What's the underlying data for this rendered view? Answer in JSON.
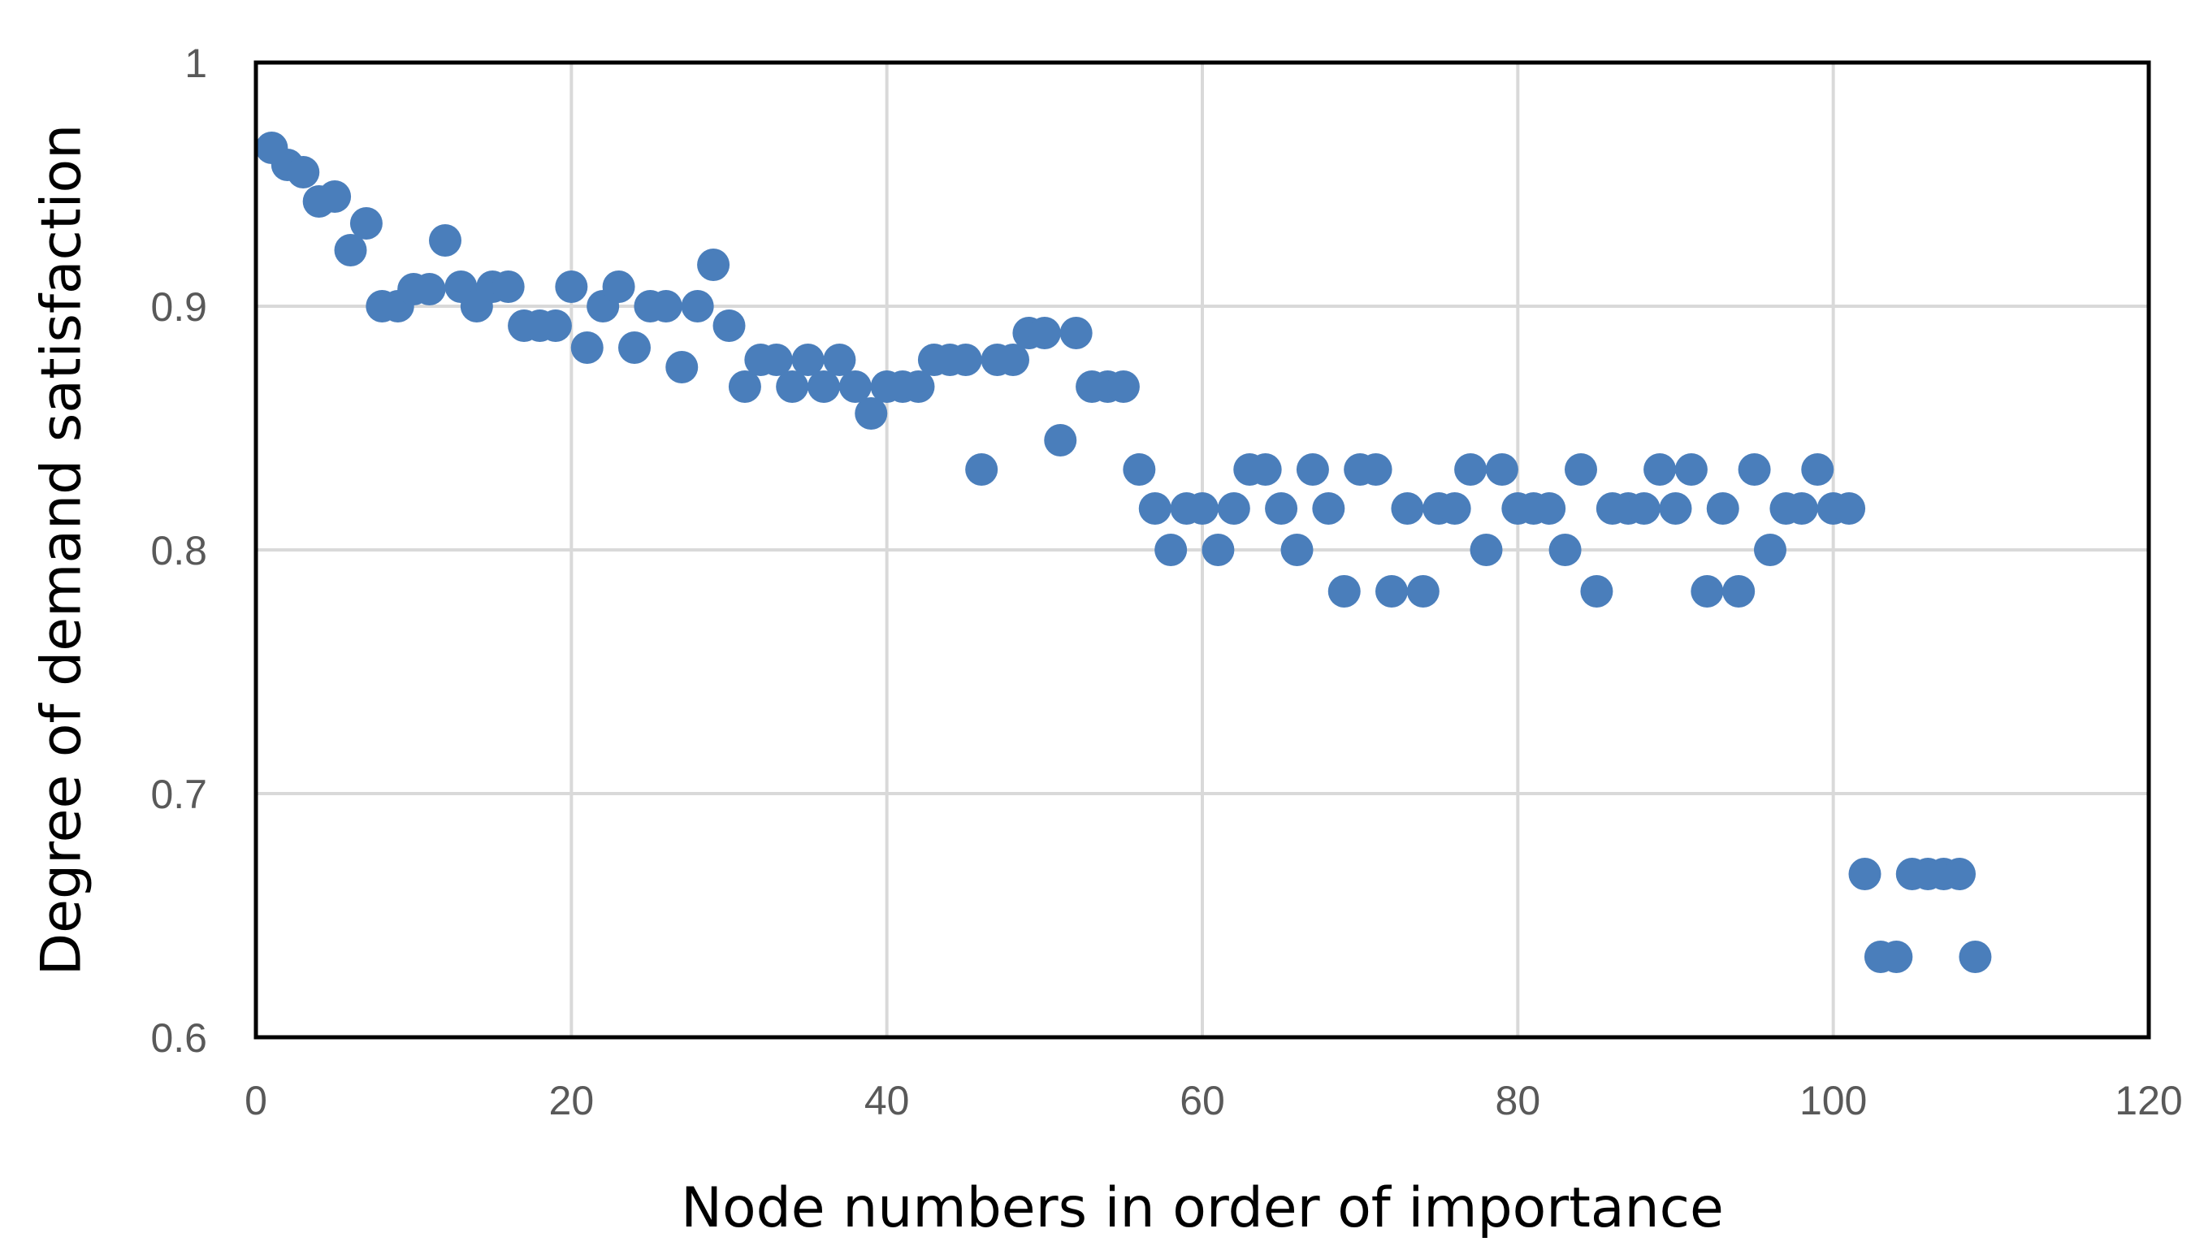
{
  "chart_data": {
    "type": "scatter",
    "title": "",
    "xlabel": "Node numbers in order of importance",
    "ylabel": "Degree of demand satisfaction",
    "xlim": [
      0,
      120
    ],
    "ylim": [
      0.6,
      1.0
    ],
    "x_ticks": [
      0,
      20,
      40,
      60,
      80,
      100,
      120
    ],
    "x_tick_labels": [
      "0",
      "20",
      "40",
      "60",
      "80",
      "100",
      "120"
    ],
    "y_ticks": [
      0.6,
      0.7,
      0.8,
      0.9,
      1.0
    ],
    "y_tick_labels": [
      "0.6",
      "0.7",
      "0.8",
      "0.9",
      "1"
    ],
    "grid": true,
    "legend": "none",
    "series": [
      {
        "name": "Degree of demand satisfaction",
        "color": "#4a7ebb",
        "x": [
          1,
          2,
          3,
          4,
          5,
          6,
          7,
          8,
          9,
          10,
          11,
          12,
          13,
          14,
          15,
          16,
          17,
          18,
          19,
          20,
          21,
          22,
          23,
          24,
          25,
          26,
          27,
          28,
          29,
          30,
          31,
          32,
          33,
          34,
          35,
          36,
          37,
          38,
          39,
          40,
          41,
          42,
          43,
          44,
          45,
          46,
          47,
          48,
          49,
          50,
          51,
          52,
          53,
          54,
          55,
          56,
          57,
          58,
          59,
          60,
          61,
          62,
          63,
          64,
          65,
          66,
          67,
          68,
          69,
          70,
          71,
          72,
          73,
          74,
          75,
          76,
          77,
          78,
          79,
          80,
          81,
          82,
          83,
          84,
          85,
          86,
          87,
          88,
          89,
          90,
          91,
          92,
          93,
          94,
          95,
          96,
          97,
          98,
          99,
          100,
          101,
          102,
          103,
          104,
          105,
          106,
          107,
          108,
          109
        ],
        "y": [
          0.965,
          0.958,
          0.955,
          0.943,
          0.945,
          0.923,
          0.934,
          0.9,
          0.9,
          0.907,
          0.907,
          0.927,
          0.908,
          0.9,
          0.908,
          0.908,
          0.892,
          0.892,
          0.892,
          0.908,
          0.883,
          0.9,
          0.908,
          0.883,
          0.9,
          0.9,
          0.875,
          0.9,
          0.917,
          0.892,
          0.867,
          0.878,
          0.878,
          0.867,
          0.878,
          0.867,
          0.878,
          0.867,
          0.856,
          0.867,
          0.867,
          0.867,
          0.878,
          0.878,
          0.878,
          0.833,
          0.878,
          0.878,
          0.889,
          0.889,
          0.845,
          0.889,
          0.867,
          0.867,
          0.867,
          0.833,
          0.817,
          0.8,
          0.817,
          0.817,
          0.8,
          0.817,
          0.833,
          0.833,
          0.817,
          0.8,
          0.833,
          0.817,
          0.783,
          0.833,
          0.833,
          0.783,
          0.817,
          0.783,
          0.817,
          0.817,
          0.833,
          0.8,
          0.833,
          0.817,
          0.817,
          0.817,
          0.8,
          0.833,
          0.783,
          0.817,
          0.817,
          0.817,
          0.833,
          0.817,
          0.833,
          0.783,
          0.817,
          0.783,
          0.833,
          0.8,
          0.817,
          0.817,
          0.833,
          0.817,
          0.817,
          0.667,
          0.633,
          0.633,
          0.667,
          0.667,
          0.667,
          0.667,
          0.633
        ]
      }
    ]
  }
}
